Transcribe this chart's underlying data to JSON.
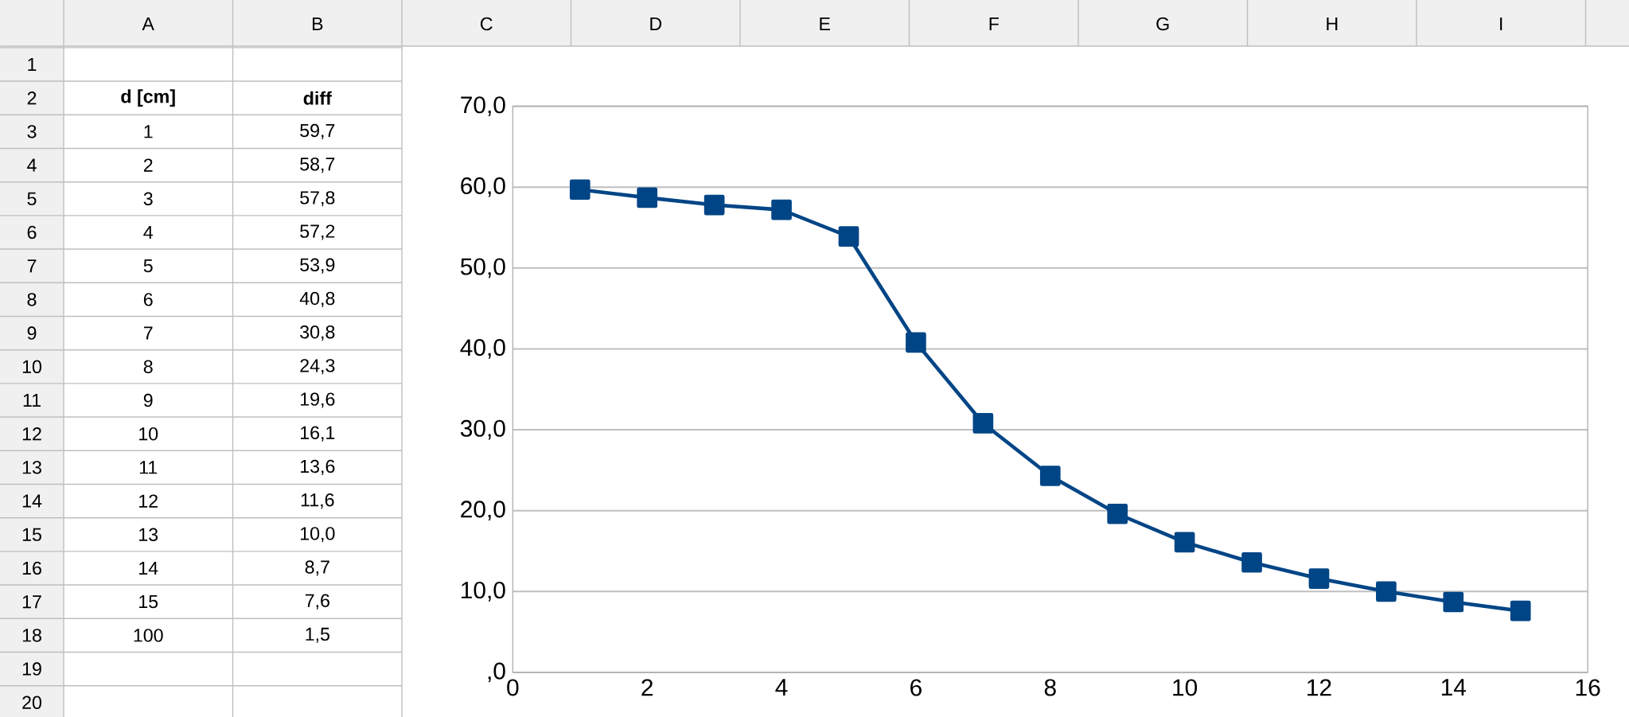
{
  "chart_data": {
    "type": "line",
    "x": [
      1,
      2,
      3,
      4,
      5,
      6,
      7,
      8,
      9,
      10,
      11,
      12,
      13,
      14,
      15
    ],
    "series": [
      {
        "color": "#004586",
        "values": [
          59.7,
          58.7,
          57.8,
          57.2,
          53.9,
          40.8,
          30.8,
          24.3,
          19.6,
          16.1,
          13.6,
          11.6,
          10.0,
          8.7,
          7.6
        ]
      }
    ],
    "xlim": [
      0,
      16
    ],
    "xticks": [
      0,
      2,
      4,
      6,
      8,
      10,
      12,
      14,
      16
    ],
    "ylim": [
      0,
      70
    ],
    "yticks": [
      {
        "value": 0,
        "label": ",0"
      },
      {
        "value": 10,
        "label": "10,0"
      },
      {
        "value": 20,
        "label": "20,0"
      },
      {
        "value": 30,
        "label": "30,0"
      },
      {
        "value": 40,
        "label": "40,0"
      },
      {
        "value": 50,
        "label": "50,0"
      },
      {
        "value": 60,
        "label": "60,0"
      },
      {
        "value": 70,
        "label": "70,0"
      }
    ],
    "grid": "y",
    "marker": "square",
    "line_style": "solid",
    "annotations": [
      "A",
      "B",
      "C",
      "D",
      "E",
      "F",
      "G",
      "H",
      "I",
      "1",
      "2",
      "3",
      "4",
      "5",
      "6",
      "7",
      "8",
      "9",
      "10",
      "11",
      "12",
      "13",
      "14",
      "15",
      "16",
      "17",
      "18",
      "19",
      "20",
      "d [cm]",
      "diff",
      "1",
      "59,7",
      "2",
      "58,7",
      "3",
      "57,8",
      "4",
      "57,2",
      "5",
      "53,9",
      "6",
      "40,8",
      "7",
      "30,8",
      "8",
      "24,3",
      "9",
      "19,6",
      "10",
      "16,1",
      "11",
      "13,6",
      "12",
      "11,6",
      "13",
      "10,0",
      "14",
      "8,7",
      "15",
      "7,6",
      "100",
      "1,5"
    ]
  }
}
